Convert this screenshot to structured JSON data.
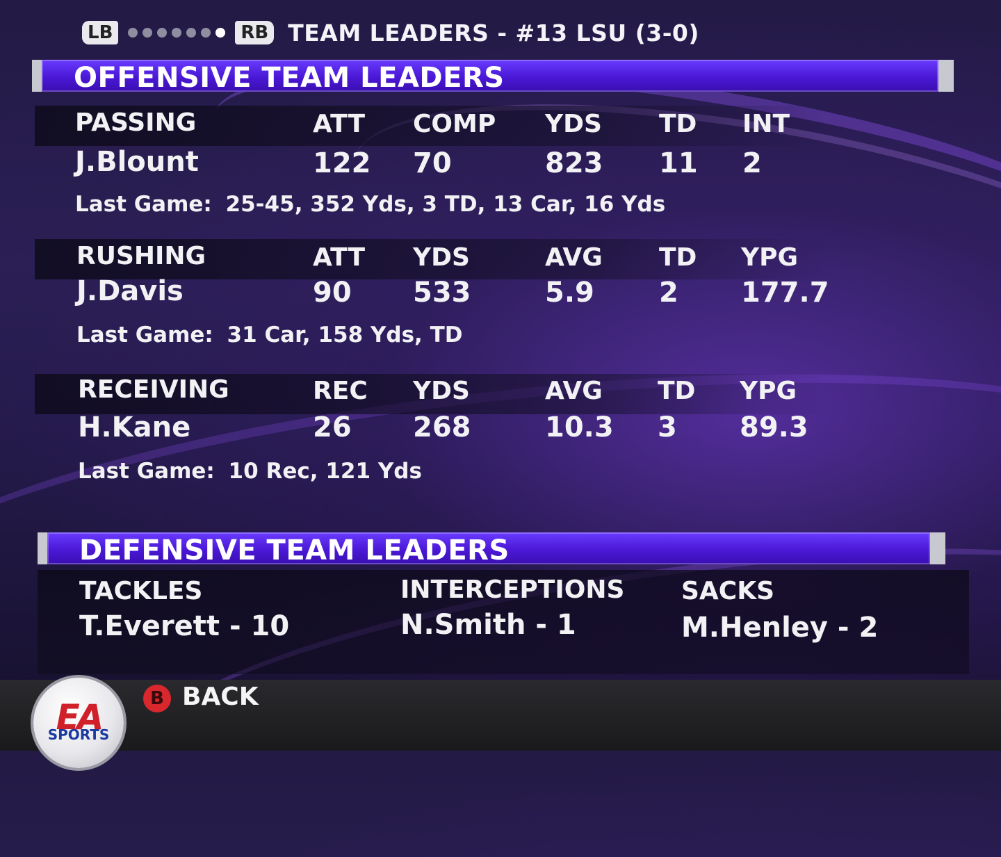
{
  "topbar": {
    "lb": "LB",
    "rb": "RB",
    "title": "TEAM LEADERS - #13 LSU (3-0)",
    "page_dots": 7,
    "active_dot": 7
  },
  "offense": {
    "header": "OFFENSIVE TEAM LEADERS",
    "passing": {
      "label": "PASSING",
      "cols": [
        "ATT",
        "COMP",
        "YDS",
        "TD",
        "INT"
      ],
      "player": "J.Blount",
      "values": [
        "122",
        "70",
        "823",
        "11",
        "2"
      ],
      "last_game_label": "Last Game:",
      "last_game": "25-45, 352 Yds, 3 TD,  13 Car, 16 Yds"
    },
    "rushing": {
      "label": "RUSHING",
      "cols": [
        "ATT",
        "YDS",
        "AVG",
        "TD",
        "YPG"
      ],
      "player": "J.Davis",
      "values": [
        "90",
        "533",
        "5.9",
        "2",
        "177.7"
      ],
      "last_game_label": "Last Game:",
      "last_game": "31 Car, 158 Yds,  TD"
    },
    "receiving": {
      "label": "RECEIVING",
      "cols": [
        "REC",
        "YDS",
        "AVG",
        "TD",
        "YPG"
      ],
      "player": "H.Kane",
      "values": [
        "26",
        "268",
        "10.3",
        "3",
        "89.3"
      ],
      "last_game_label": "Last Game:",
      "last_game": "10 Rec, 121 Yds"
    }
  },
  "defense": {
    "header": "DEFENSIVE TEAM LEADERS",
    "tackles": {
      "label": "TACKLES",
      "value": "T.Everett - 10"
    },
    "interceptions": {
      "label": "INTERCEPTIONS",
      "value": "N.Smith - 1"
    },
    "sacks": {
      "label": "SACKS",
      "value": "M.Henley - 2"
    }
  },
  "footer": {
    "b_button": "B",
    "back_label": "BACK",
    "logo_letters": "EA",
    "logo_sports": "SPORTS"
  },
  "colors": {
    "header_bar": "#4a18d6",
    "back_button": "#d8282e"
  }
}
